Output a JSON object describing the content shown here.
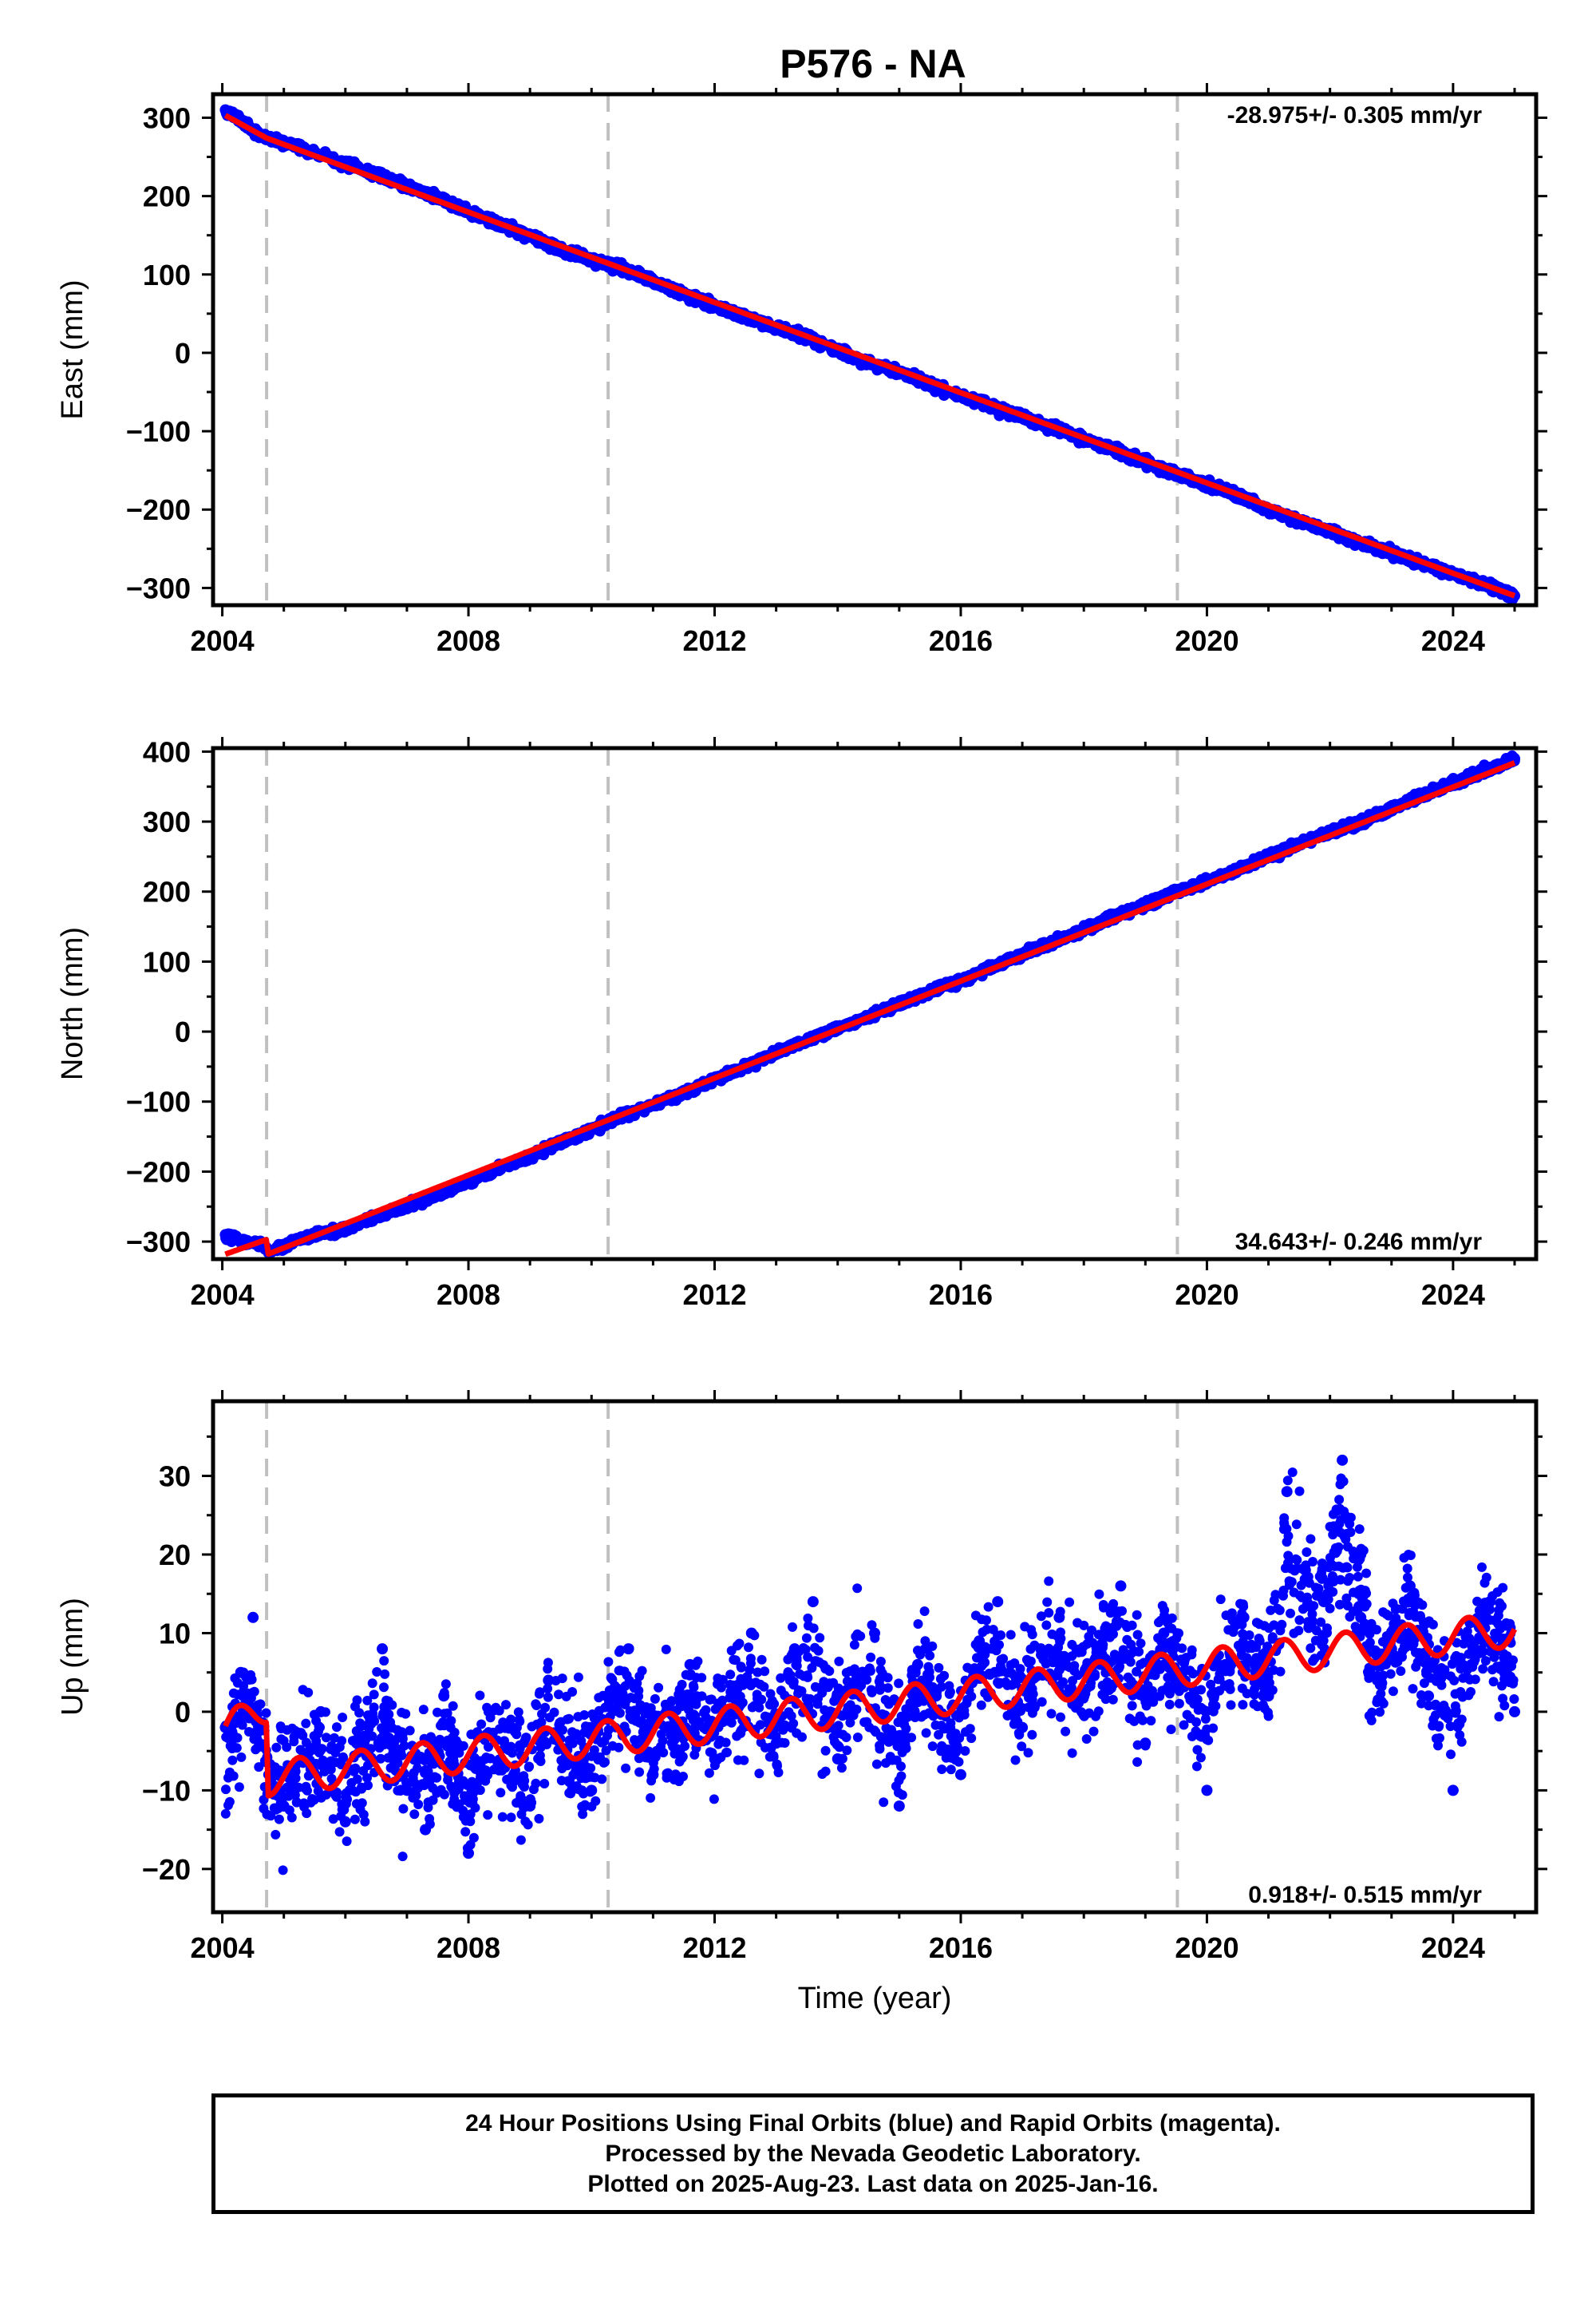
{
  "title": "P576 - NA",
  "colors": {
    "final_orbits": "#0000ff",
    "model": "#ff0000",
    "event_lines": "#c0c0c0",
    "frame": "#000000"
  },
  "chart_data": [
    {
      "type": "scatter",
      "component": "east",
      "ylabel": "East (mm)",
      "xlabel": "",
      "xlim": [
        2003.85,
        2025.35
      ],
      "ylim": [
        -322,
        330
      ],
      "x_ticks": [
        2004,
        2008,
        2012,
        2016,
        2020,
        2024
      ],
      "y_ticks": [
        -300,
        -200,
        -100,
        0,
        100,
        200,
        300
      ],
      "event_lines": [
        2004.72,
        2010.27,
        2019.52
      ],
      "rate_text": "-28.975+/- 0.305 mm/yr",
      "rate_position": "top-right",
      "series": [
        {
          "kind": "points",
          "color": "#0000ff",
          "x": [
            2004.05,
            2004.3,
            2004.6,
            2005.0,
            2005.5,
            2006.0,
            2006.5,
            2007.0,
            2007.5,
            2008.0,
            2008.5,
            2009.0,
            2009.5,
            2010.0,
            2010.5,
            2011.0,
            2011.5,
            2012.0,
            2012.5,
            2013.0,
            2013.5,
            2014.0,
            2014.5,
            2015.0,
            2015.5,
            2016.0,
            2016.5,
            2017.0,
            2017.5,
            2018.0,
            2018.5,
            2019.0,
            2019.5,
            2020.0,
            2020.5,
            2021.0,
            2021.5,
            2022.0,
            2022.5,
            2023.0,
            2023.5,
            2024.0,
            2024.5,
            2025.0
          ],
          "y": [
            310,
            295,
            278,
            268,
            255,
            240,
            228,
            212,
            198,
            180,
            165,
            150,
            132,
            118,
            108,
            92,
            75,
            60,
            45,
            33,
            20,
            2,
            -12,
            -25,
            -40,
            -55,
            -68,
            -82,
            -95,
            -110,
            -125,
            -140,
            -155,
            -168,
            -182,
            -200,
            -215,
            -228,
            -242,
            -255,
            -268,
            -282,
            -295,
            -310
          ]
        },
        {
          "kind": "line",
          "color": "#ff0000",
          "x": [
            2004.05,
            2004.72,
            2025.0
          ],
          "y": [
            303,
            274,
            -310
          ]
        }
      ]
    },
    {
      "type": "scatter",
      "component": "north",
      "ylabel": "North (mm)",
      "xlabel": "",
      "xlim": [
        2003.85,
        2025.35
      ],
      "ylim": [
        -325,
        405
      ],
      "x_ticks": [
        2004,
        2008,
        2012,
        2016,
        2020,
        2024
      ],
      "y_ticks": [
        -300,
        -200,
        -100,
        0,
        100,
        200,
        300,
        400
      ],
      "event_lines": [
        2004.72,
        2010.27,
        2019.52
      ],
      "rate_text": "34.643+/- 0.246 mm/yr",
      "rate_position": "bottom-right",
      "series": [
        {
          "kind": "points",
          "color": "#0000ff",
          "x": [
            2004.05,
            2004.3,
            2004.6,
            2004.8,
            2005.0,
            2005.5,
            2006.0,
            2006.5,
            2007.0,
            2007.5,
            2008.0,
            2008.5,
            2009.0,
            2009.5,
            2010.0,
            2010.5,
            2011.0,
            2011.5,
            2012.0,
            2012.5,
            2013.0,
            2013.5,
            2014.0,
            2014.5,
            2015.0,
            2015.5,
            2016.0,
            2016.5,
            2017.0,
            2017.5,
            2018.0,
            2018.5,
            2019.0,
            2019.5,
            2020.0,
            2020.5,
            2021.0,
            2021.5,
            2022.0,
            2022.5,
            2023.0,
            2023.5,
            2024.0,
            2024.5,
            2025.0
          ],
          "y": [
            -290,
            -300,
            -302,
            -315,
            -305,
            -290,
            -282,
            -265,
            -250,
            -232,
            -215,
            -195,
            -178,
            -158,
            -140,
            -120,
            -105,
            -88,
            -68,
            -50,
            -30,
            -12,
            5,
            22,
            38,
            58,
            72,
            92,
            110,
            128,
            145,
            165,
            182,
            200,
            215,
            232,
            250,
            268,
            285,
            300,
            318,
            338,
            355,
            372,
            390
          ]
        },
        {
          "kind": "line",
          "color": "#ff0000",
          "x": [
            2004.05,
            2004.72,
            2004.74,
            2025.0
          ],
          "y": [
            -318,
            -297,
            -318,
            384
          ]
        }
      ]
    },
    {
      "type": "scatter",
      "component": "up",
      "ylabel": "Up (mm)",
      "xlabel": "Time (year)",
      "xlim": [
        2003.85,
        2025.35
      ],
      "ylim": [
        -25.5,
        39.5
      ],
      "x_ticks": [
        2004,
        2008,
        2012,
        2016,
        2020,
        2024
      ],
      "y_ticks": [
        -20,
        -10,
        0,
        10,
        20,
        30
      ],
      "event_lines": [
        2004.72,
        2010.27,
        2019.52
      ],
      "rate_text": "0.918+/- 0.515 mm/yr",
      "rate_position": "bottom-right",
      "series": [
        {
          "kind": "points",
          "color": "#0000ff",
          "x": [
            2004.05,
            2004.3,
            2004.5,
            2004.8,
            2005.0,
            2005.3,
            2005.6,
            2006.0,
            2006.3,
            2006.6,
            2007.0,
            2007.3,
            2007.6,
            2008.0,
            2008.3,
            2008.6,
            2009.0,
            2009.3,
            2009.6,
            2010.0,
            2010.3,
            2010.6,
            2011.0,
            2011.3,
            2011.6,
            2012.0,
            2012.3,
            2012.6,
            2013.0,
            2013.3,
            2013.6,
            2014.0,
            2014.3,
            2014.6,
            2015.0,
            2015.3,
            2015.6,
            2016.0,
            2016.3,
            2016.6,
            2017.0,
            2017.3,
            2017.6,
            2018.0,
            2018.3,
            2018.6,
            2019.0,
            2019.3,
            2019.6,
            2020.0,
            2020.3,
            2020.6,
            2021.0,
            2021.3,
            2021.6,
            2021.9,
            2022.2,
            2022.5,
            2022.8,
            2023.0,
            2023.3,
            2023.6,
            2024.0,
            2024.3,
            2024.6,
            2025.0
          ],
          "y": [
            -2,
            5,
            12,
            -8,
            -12,
            -6,
            0,
            -14,
            -4,
            8,
            -10,
            -15,
            2,
            -18,
            -8,
            -2,
            -12,
            4,
            -6,
            -10,
            2,
            8,
            -8,
            -3,
            6,
            -6,
            2,
            10,
            -4,
            8,
            14,
            -6,
            4,
            10,
            -12,
            6,
            2,
            -8,
            9,
            14,
            -2,
            8,
            12,
            2,
            6,
            16,
            -4,
            10,
            4,
            -10,
            6,
            12,
            2,
            28,
            18,
            14,
            32,
            12,
            4,
            8,
            16,
            2,
            -10,
            6,
            14,
            0
          ]
        },
        {
          "kind": "line",
          "color": "#ff0000",
          "x": [
            2004.05,
            2004.72,
            2004.74,
            2025.0
          ],
          "y": [
            -2.5,
            0.8,
            -8.5,
            10.5
          ],
          "seasonal_amplitude": 2.2
        }
      ]
    }
  ],
  "footer": {
    "line1": "24 Hour Positions Using Final Orbits (blue) and Rapid Orbits (magenta).",
    "line2": "Processed by the Nevada Geodetic Laboratory.",
    "line3": "Plotted on 2025-Aug-23. Last data on 2025-Jan-16."
  }
}
